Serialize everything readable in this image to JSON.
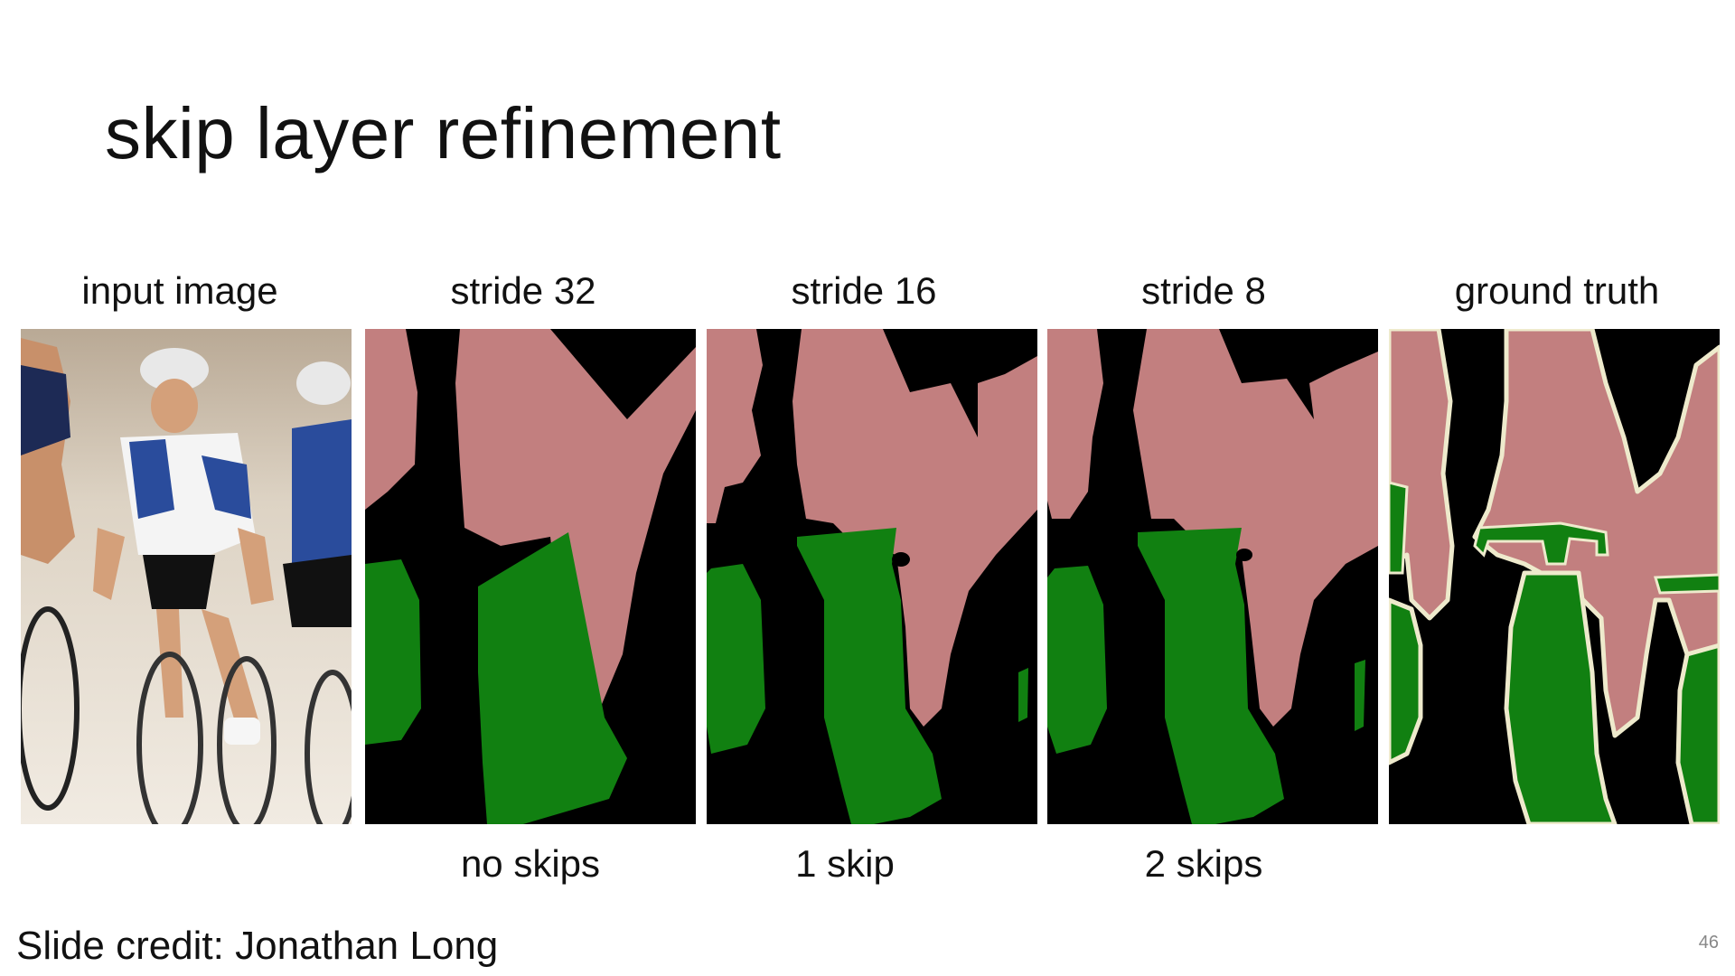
{
  "slide": {
    "title": "skip layer refinement",
    "columns": [
      {
        "label": "input image",
        "sublabel": ""
      },
      {
        "label": "stride 32",
        "sublabel": "no skips"
      },
      {
        "label": "stride 16",
        "sublabel": "1 skip"
      },
      {
        "label": "stride 8",
        "sublabel": "2 skips"
      },
      {
        "label": "ground truth",
        "sublabel": ""
      }
    ],
    "credit": "Slide credit: Jonathan Long",
    "page_number": "46"
  },
  "colors": {
    "person": "#c27f7f",
    "bicycle": "#118011",
    "background": "#000000",
    "boundary": "#eeeacc"
  }
}
